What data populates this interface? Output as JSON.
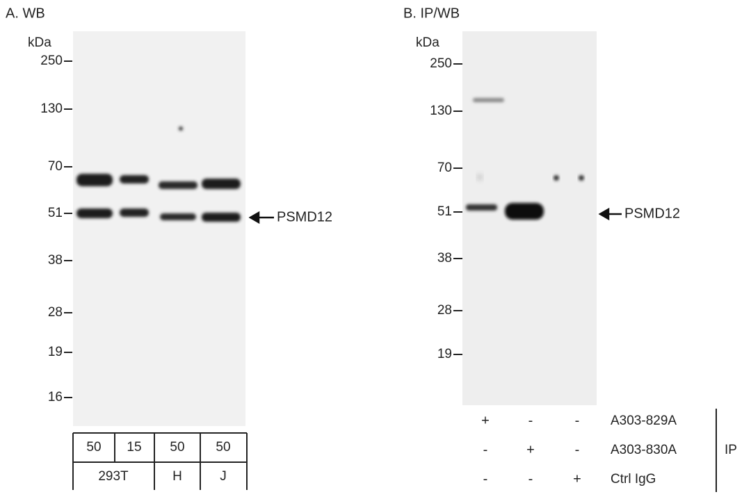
{
  "panels": [
    {
      "title": "A. WB",
      "unit": "kDa",
      "markers": [
        250,
        130,
        70,
        51,
        38,
        28,
        19,
        16
      ],
      "target": "PSMD12",
      "loads": [
        50,
        15,
        50,
        50
      ],
      "groups": [
        "293T",
        "H",
        "J"
      ]
    },
    {
      "title": "B. IP/WB",
      "unit": "kDa",
      "markers": [
        250,
        130,
        70,
        51,
        38,
        28,
        19
      ],
      "target": "PSMD12",
      "rows": [
        {
          "label": "A303-829A",
          "signs": [
            "+",
            "-",
            "-"
          ]
        },
        {
          "label": "A303-830A",
          "signs": [
            "-",
            "+",
            "-"
          ]
        },
        {
          "label": "Ctrl IgG",
          "signs": [
            "-",
            "-",
            "+"
          ]
        }
      ],
      "group_label": "IP"
    }
  ]
}
